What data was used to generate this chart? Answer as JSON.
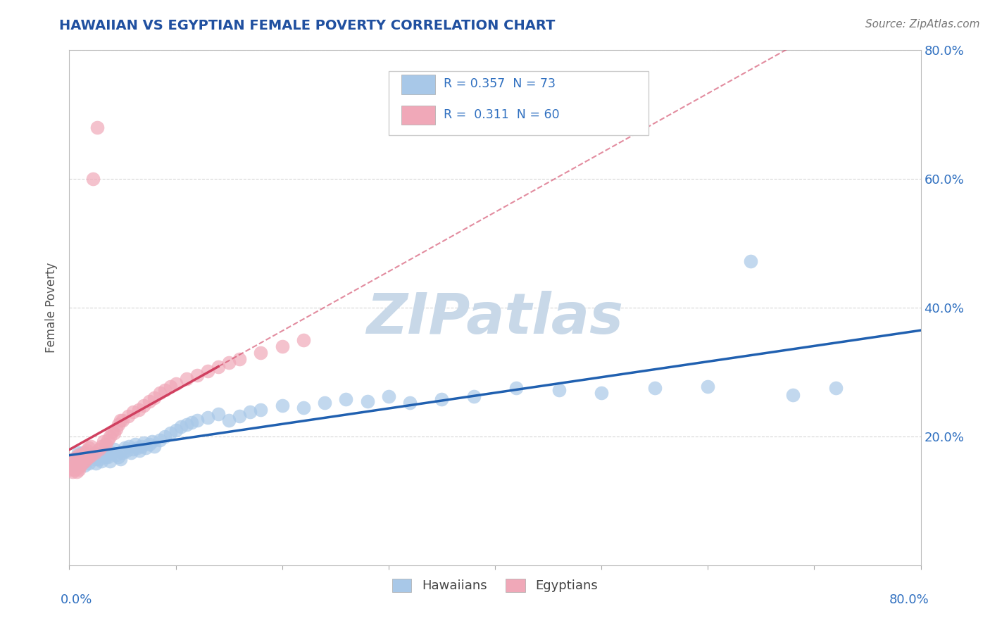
{
  "title": "HAWAIIAN VS EGYPTIAN FEMALE POVERTY CORRELATION CHART",
  "source": "Source: ZipAtlas.com",
  "ylabel": "Female Poverty",
  "xlim": [
    0,
    0.8
  ],
  "ylim": [
    0,
    0.8
  ],
  "hawaiians_R": 0.357,
  "hawaiians_N": 73,
  "egyptians_R": 0.311,
  "egyptians_N": 60,
  "hawaiian_color": "#a8c8e8",
  "egyptian_color": "#f0a8b8",
  "hawaiian_line_color": "#2060b0",
  "egyptian_line_color": "#d04060",
  "ref_line_color": "#c0a8b0",
  "title_color": "#2050a0",
  "label_color": "#3070c0",
  "source_color": "#777777",
  "watermark_color": "#c8d8e8",
  "watermark": "ZIPatlas",
  "ytick_labels": [
    "20.0%",
    "40.0%",
    "60.0%",
    "80.0%"
  ],
  "ytick_vals": [
    0.2,
    0.4,
    0.6,
    0.8
  ],
  "xtick_label_left": "0.0%",
  "xtick_label_right": "80.0%",
  "legend_label1": "R = 0.357  N = 73",
  "legend_label2": "R =  0.311  N = 60",
  "bottom_legend1": "Hawaiians",
  "bottom_legend2": "Egyptians",
  "hawaiians_x": [
    0.003,
    0.005,
    0.008,
    0.01,
    0.012,
    0.014,
    0.015,
    0.016,
    0.018,
    0.02,
    0.022,
    0.024,
    0.025,
    0.025,
    0.026,
    0.028,
    0.03,
    0.032,
    0.034,
    0.035,
    0.036,
    0.038,
    0.04,
    0.042,
    0.044,
    0.046,
    0.048,
    0.05,
    0.052,
    0.054,
    0.056,
    0.058,
    0.06,
    0.062,
    0.064,
    0.066,
    0.068,
    0.07,
    0.072,
    0.075,
    0.078,
    0.08,
    0.085,
    0.09,
    0.095,
    0.1,
    0.105,
    0.11,
    0.115,
    0.12,
    0.13,
    0.14,
    0.15,
    0.16,
    0.17,
    0.18,
    0.2,
    0.22,
    0.24,
    0.26,
    0.28,
    0.3,
    0.32,
    0.35,
    0.38,
    0.42,
    0.46,
    0.5,
    0.55,
    0.6,
    0.64,
    0.68,
    0.72
  ],
  "hawaiians_y": [
    0.155,
    0.16,
    0.175,
    0.165,
    0.175,
    0.155,
    0.162,
    0.17,
    0.158,
    0.168,
    0.172,
    0.165,
    0.158,
    0.174,
    0.17,
    0.165,
    0.162,
    0.175,
    0.168,
    0.172,
    0.168,
    0.162,
    0.175,
    0.18,
    0.172,
    0.168,
    0.165,
    0.175,
    0.182,
    0.178,
    0.185,
    0.175,
    0.18,
    0.188,
    0.182,
    0.178,
    0.185,
    0.19,
    0.182,
    0.188,
    0.192,
    0.185,
    0.195,
    0.2,
    0.205,
    0.21,
    0.215,
    0.218,
    0.222,
    0.225,
    0.23,
    0.235,
    0.225,
    0.232,
    0.238,
    0.242,
    0.248,
    0.245,
    0.252,
    0.258,
    0.255,
    0.262,
    0.252,
    0.258,
    0.262,
    0.275,
    0.272,
    0.268,
    0.275,
    0.278,
    0.472,
    0.265,
    0.275
  ],
  "egyptians_x": [
    0.001,
    0.002,
    0.003,
    0.003,
    0.004,
    0.005,
    0.005,
    0.006,
    0.007,
    0.007,
    0.008,
    0.008,
    0.009,
    0.009,
    0.01,
    0.01,
    0.012,
    0.012,
    0.014,
    0.014,
    0.016,
    0.016,
    0.018,
    0.018,
    0.02,
    0.02,
    0.022,
    0.024,
    0.026,
    0.028,
    0.03,
    0.032,
    0.034,
    0.036,
    0.038,
    0.04,
    0.042,
    0.044,
    0.046,
    0.048,
    0.05,
    0.055,
    0.06,
    0.065,
    0.07,
    0.075,
    0.08,
    0.085,
    0.09,
    0.095,
    0.1,
    0.11,
    0.12,
    0.13,
    0.14,
    0.15,
    0.16,
    0.18,
    0.2,
    0.22
  ],
  "egyptians_y": [
    0.148,
    0.152,
    0.145,
    0.165,
    0.15,
    0.148,
    0.162,
    0.155,
    0.145,
    0.168,
    0.152,
    0.162,
    0.148,
    0.172,
    0.155,
    0.165,
    0.158,
    0.17,
    0.162,
    0.175,
    0.165,
    0.178,
    0.168,
    0.182,
    0.17,
    0.185,
    0.6,
    0.175,
    0.68,
    0.18,
    0.185,
    0.192,
    0.188,
    0.195,
    0.2,
    0.208,
    0.205,
    0.212,
    0.218,
    0.225,
    0.225,
    0.232,
    0.238,
    0.242,
    0.248,
    0.255,
    0.26,
    0.268,
    0.272,
    0.278,
    0.282,
    0.29,
    0.295,
    0.302,
    0.308,
    0.315,
    0.32,
    0.33,
    0.34,
    0.35
  ]
}
